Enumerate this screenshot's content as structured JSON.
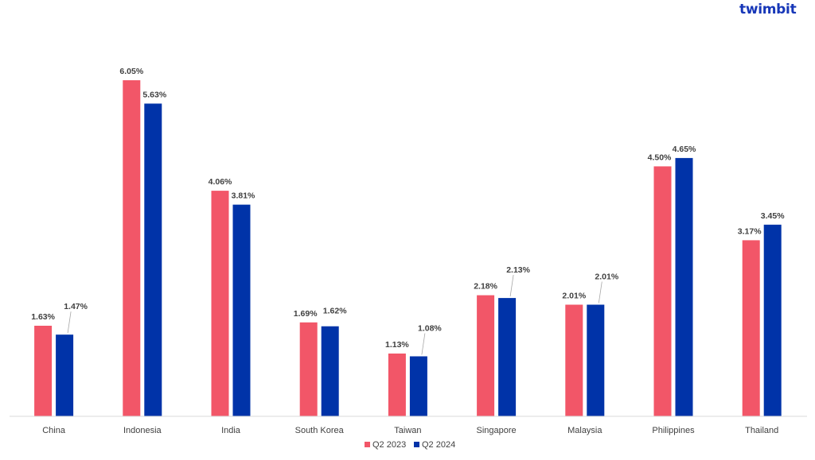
{
  "brand": {
    "name": "twimbit",
    "color": "#1737b8"
  },
  "chart_data": {
    "type": "bar",
    "categories": [
      "China",
      "Indonesia",
      "India",
      "South Korea",
      "Taiwan",
      "Singapore",
      "Malaysia",
      "Philippines",
      "Thailand"
    ],
    "series": [
      {
        "name": "Q2 2023",
        "color": "#f25668",
        "values": [
          1.63,
          6.05,
          4.06,
          1.69,
          1.13,
          2.18,
          2.01,
          4.5,
          3.17
        ],
        "labels": [
          "1.63%",
          "6.05%",
          "4.06%",
          "1.69%",
          "1.13%",
          "2.18%",
          "2.01%",
          "4.50%",
          "3.17%"
        ]
      },
      {
        "name": "Q2 2024",
        "color": "#0033a8",
        "values": [
          1.47,
          5.63,
          3.81,
          1.62,
          1.08,
          2.13,
          2.01,
          4.65,
          3.45
        ],
        "labels": [
          "1.47%",
          "5.63%",
          "3.81%",
          "1.62%",
          "1.08%",
          "2.13%",
          "2.01%",
          "4.65%",
          "3.45%"
        ]
      }
    ],
    "ylim": [
      0,
      6.05
    ],
    "grid": false,
    "legend": "bottom-center"
  }
}
